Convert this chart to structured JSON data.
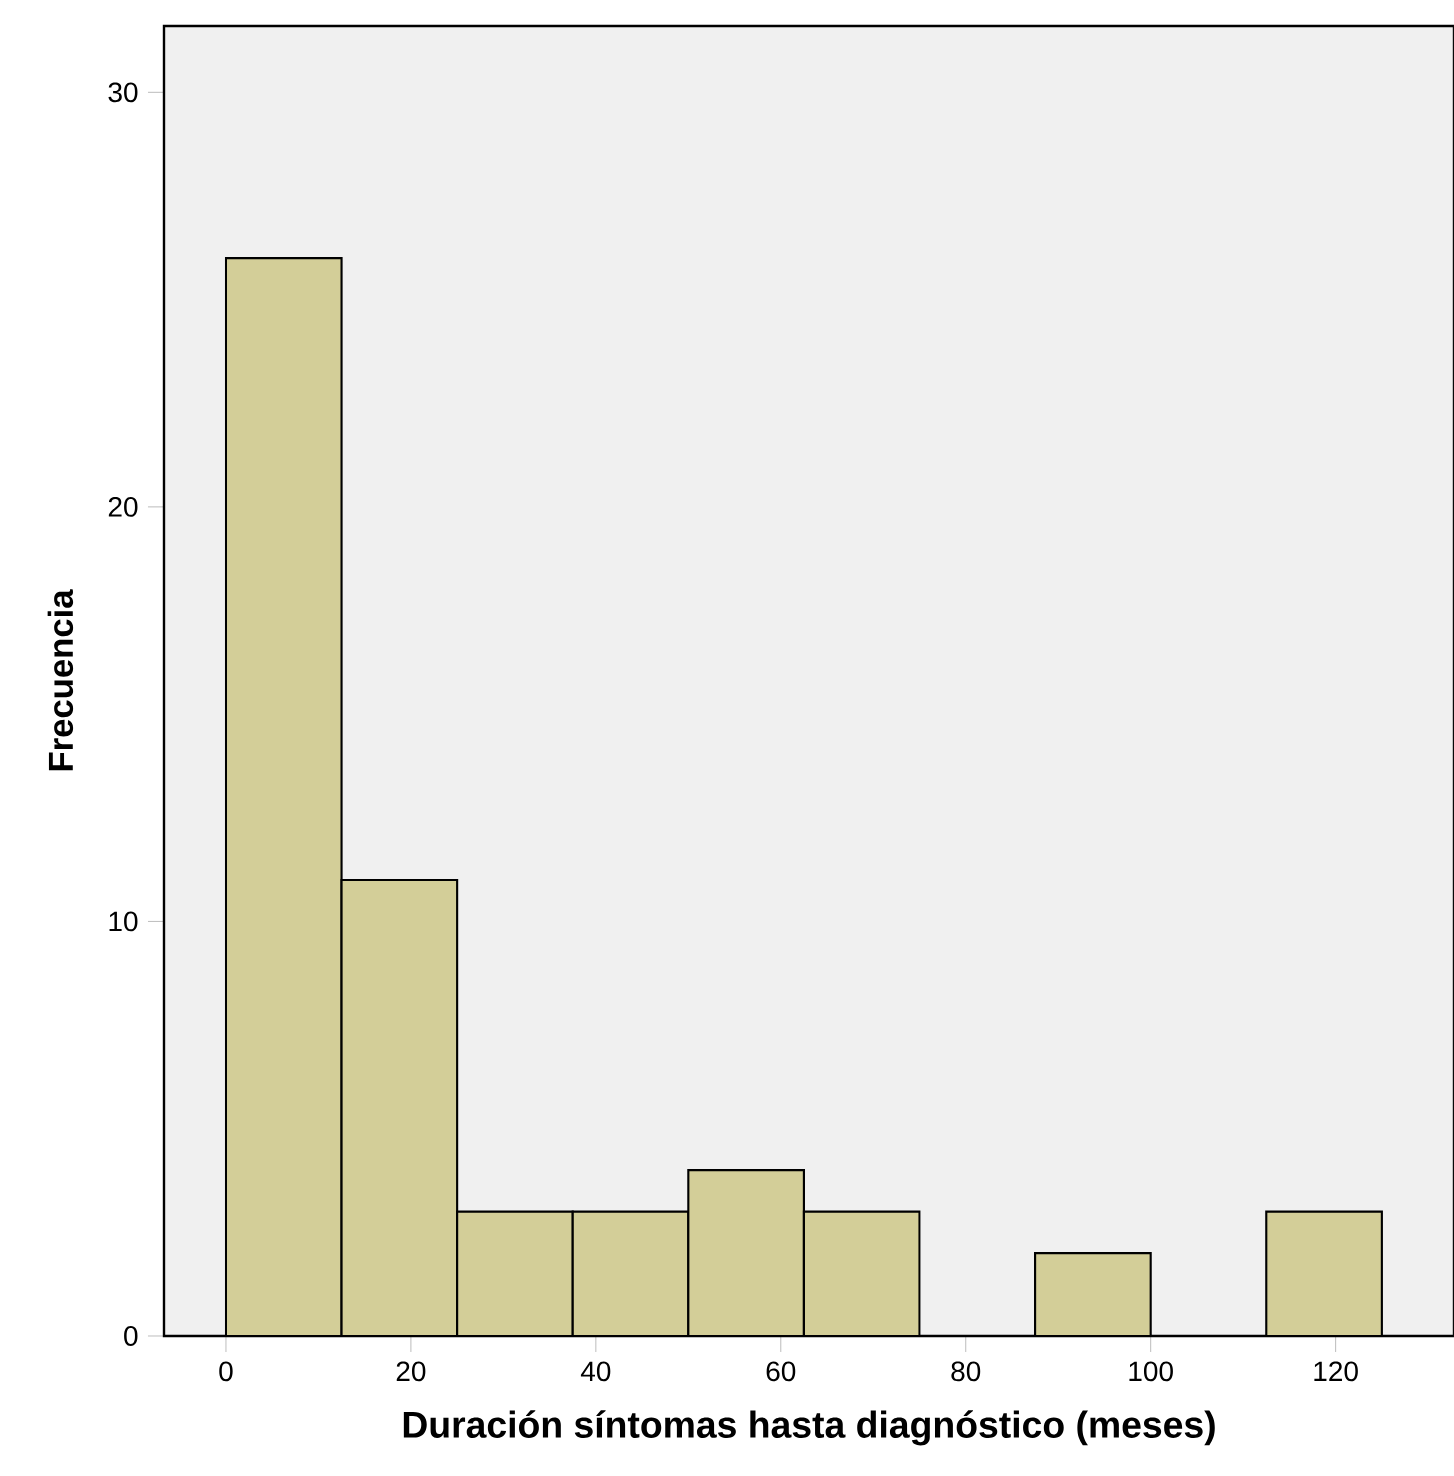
{
  "chart_data": {
    "type": "histogram",
    "xlabel": "Duración síntomas hasta diagnóstico (meses)",
    "ylabel": "Frecuencia",
    "bins": [
      0,
      12.5,
      25,
      37.5,
      50,
      62.5,
      75,
      87.5,
      100,
      112.5,
      125
    ],
    "values": [
      26,
      11,
      3,
      3,
      4,
      3,
      0,
      2,
      0,
      3
    ],
    "color": "#d3ce98",
    "xlim": [
      -6.7,
      132.8
    ],
    "ylim": [
      0,
      31.6
    ],
    "xticks": [
      0,
      20,
      40,
      60,
      80,
      100,
      120
    ],
    "yticks": [
      0,
      10,
      20,
      30
    ]
  }
}
